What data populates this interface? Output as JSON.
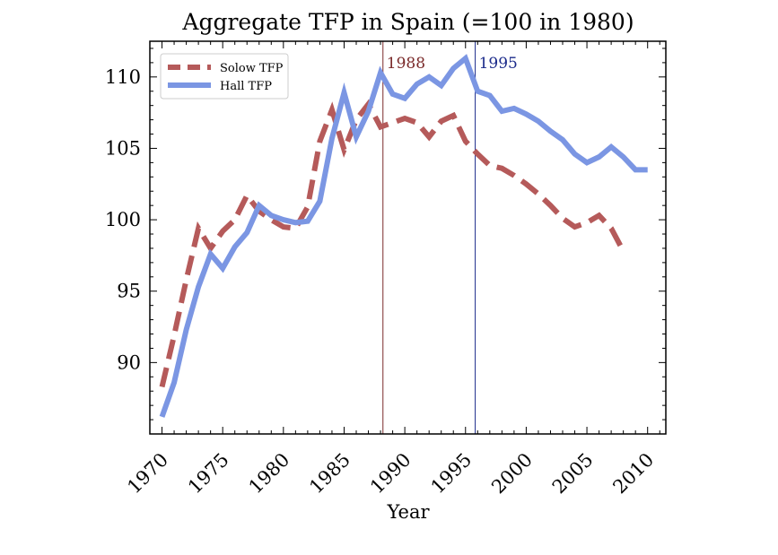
{
  "chart_data": {
    "type": "line",
    "title": "Aggregate TFP in Spain (=100 in 1980)",
    "xlabel": "Year",
    "ylabel": "",
    "xlim": [
      1969,
      2011.5
    ],
    "ylim": [
      85,
      112.5
    ],
    "xticks": [
      1970,
      1975,
      1980,
      1985,
      1990,
      1995,
      2000,
      2005,
      2010
    ],
    "xtick_labels": [
      "1970",
      "1975",
      "1980",
      "1985",
      "1990",
      "1995",
      "2000",
      "2005",
      "2010"
    ],
    "yticks": [
      90,
      95,
      100,
      105,
      110
    ],
    "ytick_labels": [
      "90",
      "95",
      "100",
      "105",
      "110"
    ],
    "grid": false,
    "legend_position": "top-left",
    "series": [
      {
        "name": "Solow TFP",
        "color": "#b55a5a",
        "style": "dashed",
        "x": [
          1970,
          1971,
          1972,
          1973,
          1974,
          1975,
          1976,
          1977,
          1978,
          1979,
          1980,
          1981,
          1982,
          1983,
          1984,
          1985,
          1986,
          1987,
          1988,
          1989,
          1990,
          1991,
          1992,
          1993,
          1994,
          1995,
          1996,
          1997,
          1998,
          1999,
          2000,
          2001,
          2002,
          2003,
          2004,
          2005,
          2006,
          2007,
          2008,
          2009
        ],
        "values": [
          88.3,
          91.9,
          95.8,
          99.4,
          98.0,
          99.2,
          100.0,
          101.7,
          100.6,
          100.0,
          99.5,
          99.4,
          100.9,
          105.5,
          107.7,
          104.9,
          107.0,
          108.1,
          106.5,
          106.8,
          107.1,
          106.8,
          105.8,
          106.9,
          107.3,
          105.5,
          104.6,
          103.8,
          103.6,
          103.1,
          102.5,
          101.8,
          101.0,
          100.1,
          99.5,
          99.8,
          100.3,
          99.4,
          97.8,
          null
        ],
        "labels": []
      },
      {
        "name": "Hall TFP",
        "color": "#7b96e3",
        "style": "solid",
        "x": [
          1970,
          1971,
          1972,
          1973,
          1974,
          1975,
          1976,
          1977,
          1978,
          1979,
          1980,
          1981,
          1982,
          1983,
          1984,
          1985,
          1986,
          1987,
          1988,
          1989,
          1990,
          1991,
          1992,
          1993,
          1994,
          1995,
          1996,
          1997,
          1998,
          1999,
          2000,
          2001,
          2002,
          2003,
          2004,
          2005,
          2006,
          2007,
          2008,
          2009,
          2010
        ],
        "values": [
          86.2,
          88.6,
          92.3,
          95.3,
          97.6,
          96.6,
          98.1,
          99.1,
          101.0,
          100.3,
          100.0,
          99.8,
          99.9,
          101.3,
          105.7,
          108.9,
          105.8,
          107.6,
          110.3,
          108.8,
          108.5,
          109.5,
          110.0,
          109.4,
          110.6,
          111.3,
          109.0,
          108.7,
          107.6,
          107.8,
          107.4,
          106.9,
          106.2,
          105.6,
          104.6,
          104.0,
          104.4,
          105.1,
          104.4,
          103.5,
          103.5
        ]
      }
    ],
    "annotations": [
      {
        "text": "1988",
        "x": 1988.2,
        "color": "#7a2a2a"
      },
      {
        "text": "1995",
        "x": 1995.8,
        "color": "#1a2a8a"
      }
    ]
  }
}
